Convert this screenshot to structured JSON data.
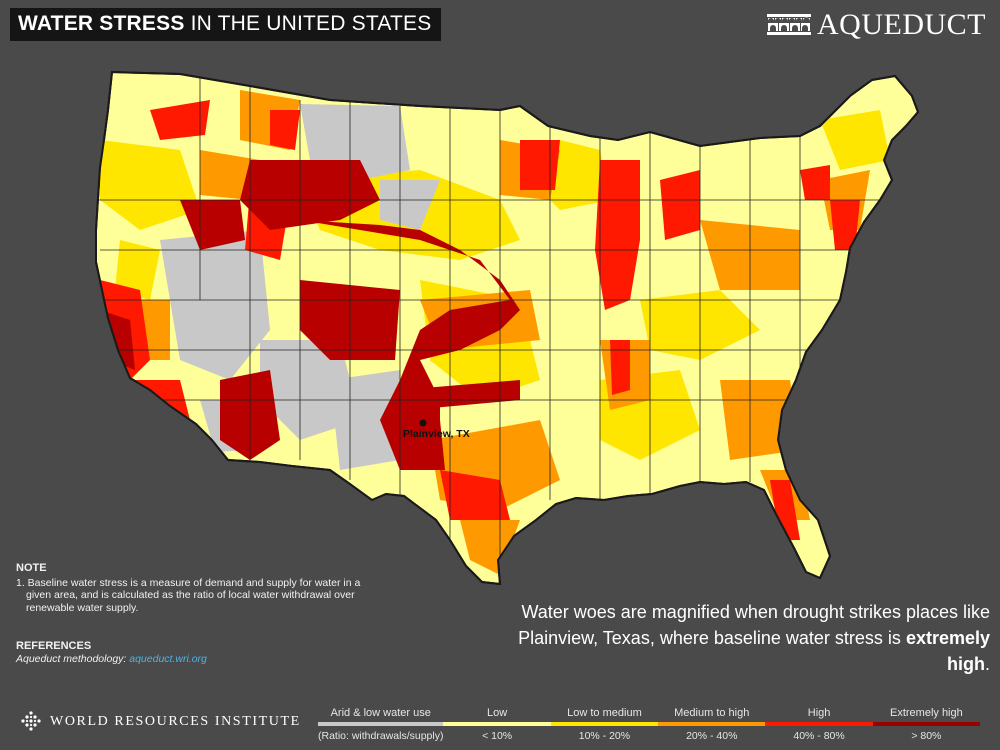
{
  "header": {
    "title_bold": "WATER STRESS",
    "title_rest": "IN THE UNITED STATES",
    "brand_name": "AQUEDUCT",
    "brand_icon": "aqueduct-arches-icon"
  },
  "map": {
    "region": "Contiguous United States",
    "pin_label": "Plainview, TX",
    "background_color": "#4a4a4a",
    "outline_color": "#222222"
  },
  "note": {
    "heading": "NOTE",
    "text": "1. Baseline water stress is a measure of demand and supply for water in a given area, and is calculated as the ratio of local water withdrawal over renewable water supply."
  },
  "references": {
    "heading": "REFERENCES",
    "label": "Aqueduct methodology:",
    "link": "aqueduct.wri.org"
  },
  "callout": {
    "line1": "Water woes are magnified when drought strikes places like",
    "line2": "Plainview, Texas, where baseline water stress is",
    "emphasis": "extremely high",
    "tail": "."
  },
  "footer": {
    "org": "WORLD RESOURCES INSTITUTE",
    "org_icon": "wri-diamond-icon"
  },
  "legend": {
    "items": [
      {
        "label": "Arid & low water use",
        "range": "(Ratio: withdrawals/supply)",
        "color": "#c8c8c8"
      },
      {
        "label": "Low",
        "range": "< 10%",
        "color": "#ffff99"
      },
      {
        "label": "Low to medium",
        "range": "10% - 20%",
        "color": "#ffe600"
      },
      {
        "label": "Medium to high",
        "range": "20% - 40%",
        "color": "#ff9900"
      },
      {
        "label": "High",
        "range": "40% - 80%",
        "color": "#ff1900"
      },
      {
        "label": "Extremely high",
        "range": "> 80%",
        "color": "#990000"
      }
    ]
  }
}
